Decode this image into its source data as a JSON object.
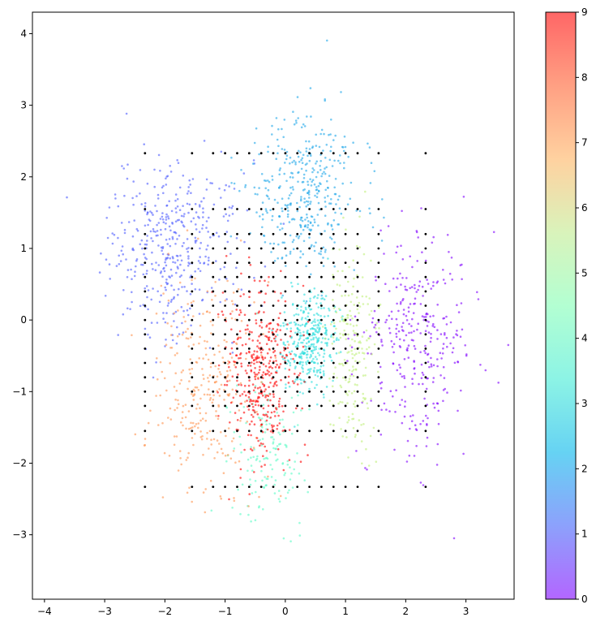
{
  "chart_data": {
    "type": "scatter",
    "title": "",
    "xlabel": "",
    "ylabel": "",
    "xlim": [
      -4.2,
      3.8
    ],
    "ylim": [
      -3.9,
      4.3
    ],
    "x_ticks": [
      -4,
      -3,
      -2,
      -1,
      0,
      1,
      2,
      3
    ],
    "y_ticks": [
      -3,
      -2,
      -1,
      0,
      1,
      2,
      3,
      4
    ],
    "x_tick_labels": [
      "−4",
      "−3",
      "−2",
      "−1",
      "0",
      "1",
      "2",
      "3"
    ],
    "y_tick_labels": [
      "−3",
      "−2",
      "−1",
      "0",
      "1",
      "2",
      "3",
      "4"
    ],
    "grid": false,
    "legend": "none",
    "colormap": "rainbow",
    "color_range": [
      0,
      9
    ],
    "colorbar_ticks": [
      0,
      1,
      2,
      3,
      4,
      5,
      6,
      7,
      8,
      9
    ],
    "colorbar_tick_labels": [
      "0",
      "1",
      "2",
      "3",
      "4",
      "5",
      "6",
      "7",
      "8",
      "9"
    ],
    "point_alpha": 0.6,
    "clusters": [
      {
        "value": 0,
        "color": "#8000ff",
        "center": [
          2.2,
          -0.3
        ],
        "spread": [
          0.45,
          0.75
        ],
        "count": 320
      },
      {
        "value": 1,
        "color": "#4c5bff",
        "center": [
          -1.9,
          1.0
        ],
        "spread": [
          0.55,
          0.6
        ],
        "count": 420
      },
      {
        "value": 2,
        "color": "#1ea7ea",
        "center": [
          0.3,
          1.8
        ],
        "spread": [
          0.45,
          0.55
        ],
        "count": 380
      },
      {
        "value": 3,
        "color": "#2adddd",
        "center": [
          0.4,
          -0.3
        ],
        "spread": [
          0.22,
          0.35
        ],
        "count": 350
      },
      {
        "value": 4,
        "color": "#5efcc6",
        "center": [
          -0.3,
          -1.8
        ],
        "spread": [
          0.3,
          0.5
        ],
        "count": 150
      },
      {
        "value": 6,
        "color": "#c0f07a",
        "center": [
          1.1,
          -0.3
        ],
        "spread": [
          0.2,
          0.75
        ],
        "count": 200
      },
      {
        "value": 7,
        "color": "#ff9450",
        "center": [
          -1.3,
          -0.9
        ],
        "spread": [
          0.45,
          0.75
        ],
        "count": 300
      },
      {
        "value": 9,
        "color": "#ff0000",
        "center": [
          -0.4,
          -0.8
        ],
        "spread": [
          0.28,
          0.6
        ],
        "count": 380
      }
    ],
    "grid_points": {
      "color": "#000000",
      "x": [
        -2.33,
        -1.55,
        -1.2,
        -1.0,
        -0.8,
        -0.6,
        -0.4,
        -0.2,
        0.0,
        0.2,
        0.4,
        0.6,
        0.8,
        1.0,
        1.2,
        1.55,
        2.33
      ],
      "y": [
        -2.33,
        -1.55,
        -1.2,
        -1.0,
        -0.8,
        -0.6,
        -0.4,
        -0.2,
        0.0,
        0.2,
        0.4,
        0.6,
        0.8,
        1.0,
        1.2,
        1.55,
        2.33
      ]
    }
  }
}
